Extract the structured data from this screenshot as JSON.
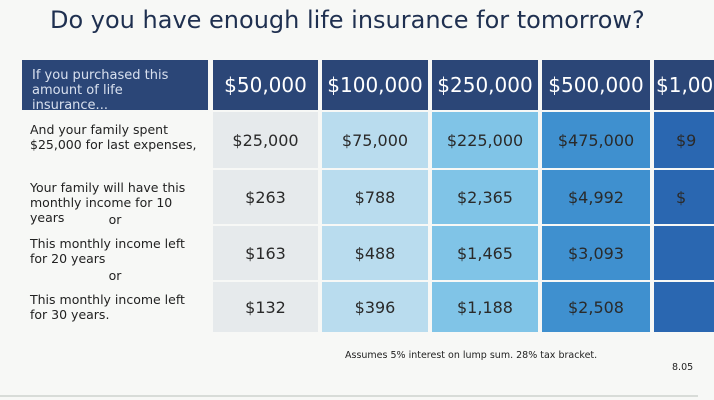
{
  "header": {
    "title": "Do you have enough life insurance for tomorrow?"
  },
  "table": {
    "header_label": [
      "If you purchased this",
      "amount of life insurance..."
    ],
    "columns": [
      "$50,000",
      "$100,000",
      "$250,000",
      "$500,000",
      "$1,00"
    ],
    "rows": [
      {
        "label": [
          "And your family spent",
          "$25,000 for last expenses,"
        ],
        "values": [
          "$25,000",
          "$75,000",
          "$225,000",
          "$475,000",
          "$9"
        ]
      },
      {
        "label": [
          "Your family will have this",
          "monthly income for 10 years"
        ],
        "connector": "or",
        "values": [
          "$263",
          "$788",
          "$2,365",
          "$4,992",
          "$"
        ]
      },
      {
        "label": [
          "This monthly income left",
          "for 20 years"
        ],
        "connector": "or",
        "values": [
          "$163",
          "$488",
          "$1,465",
          "$3,093"
        ]
      },
      {
        "label": [
          "This monthly income left",
          "for 30 years."
        ],
        "values": [
          "$132",
          "$396",
          "$1,188",
          "$2,508"
        ]
      }
    ]
  },
  "footer": {
    "note": "Assumes 5% interest on lump sum. 28% tax bracket.",
    "code": "8.05"
  }
}
